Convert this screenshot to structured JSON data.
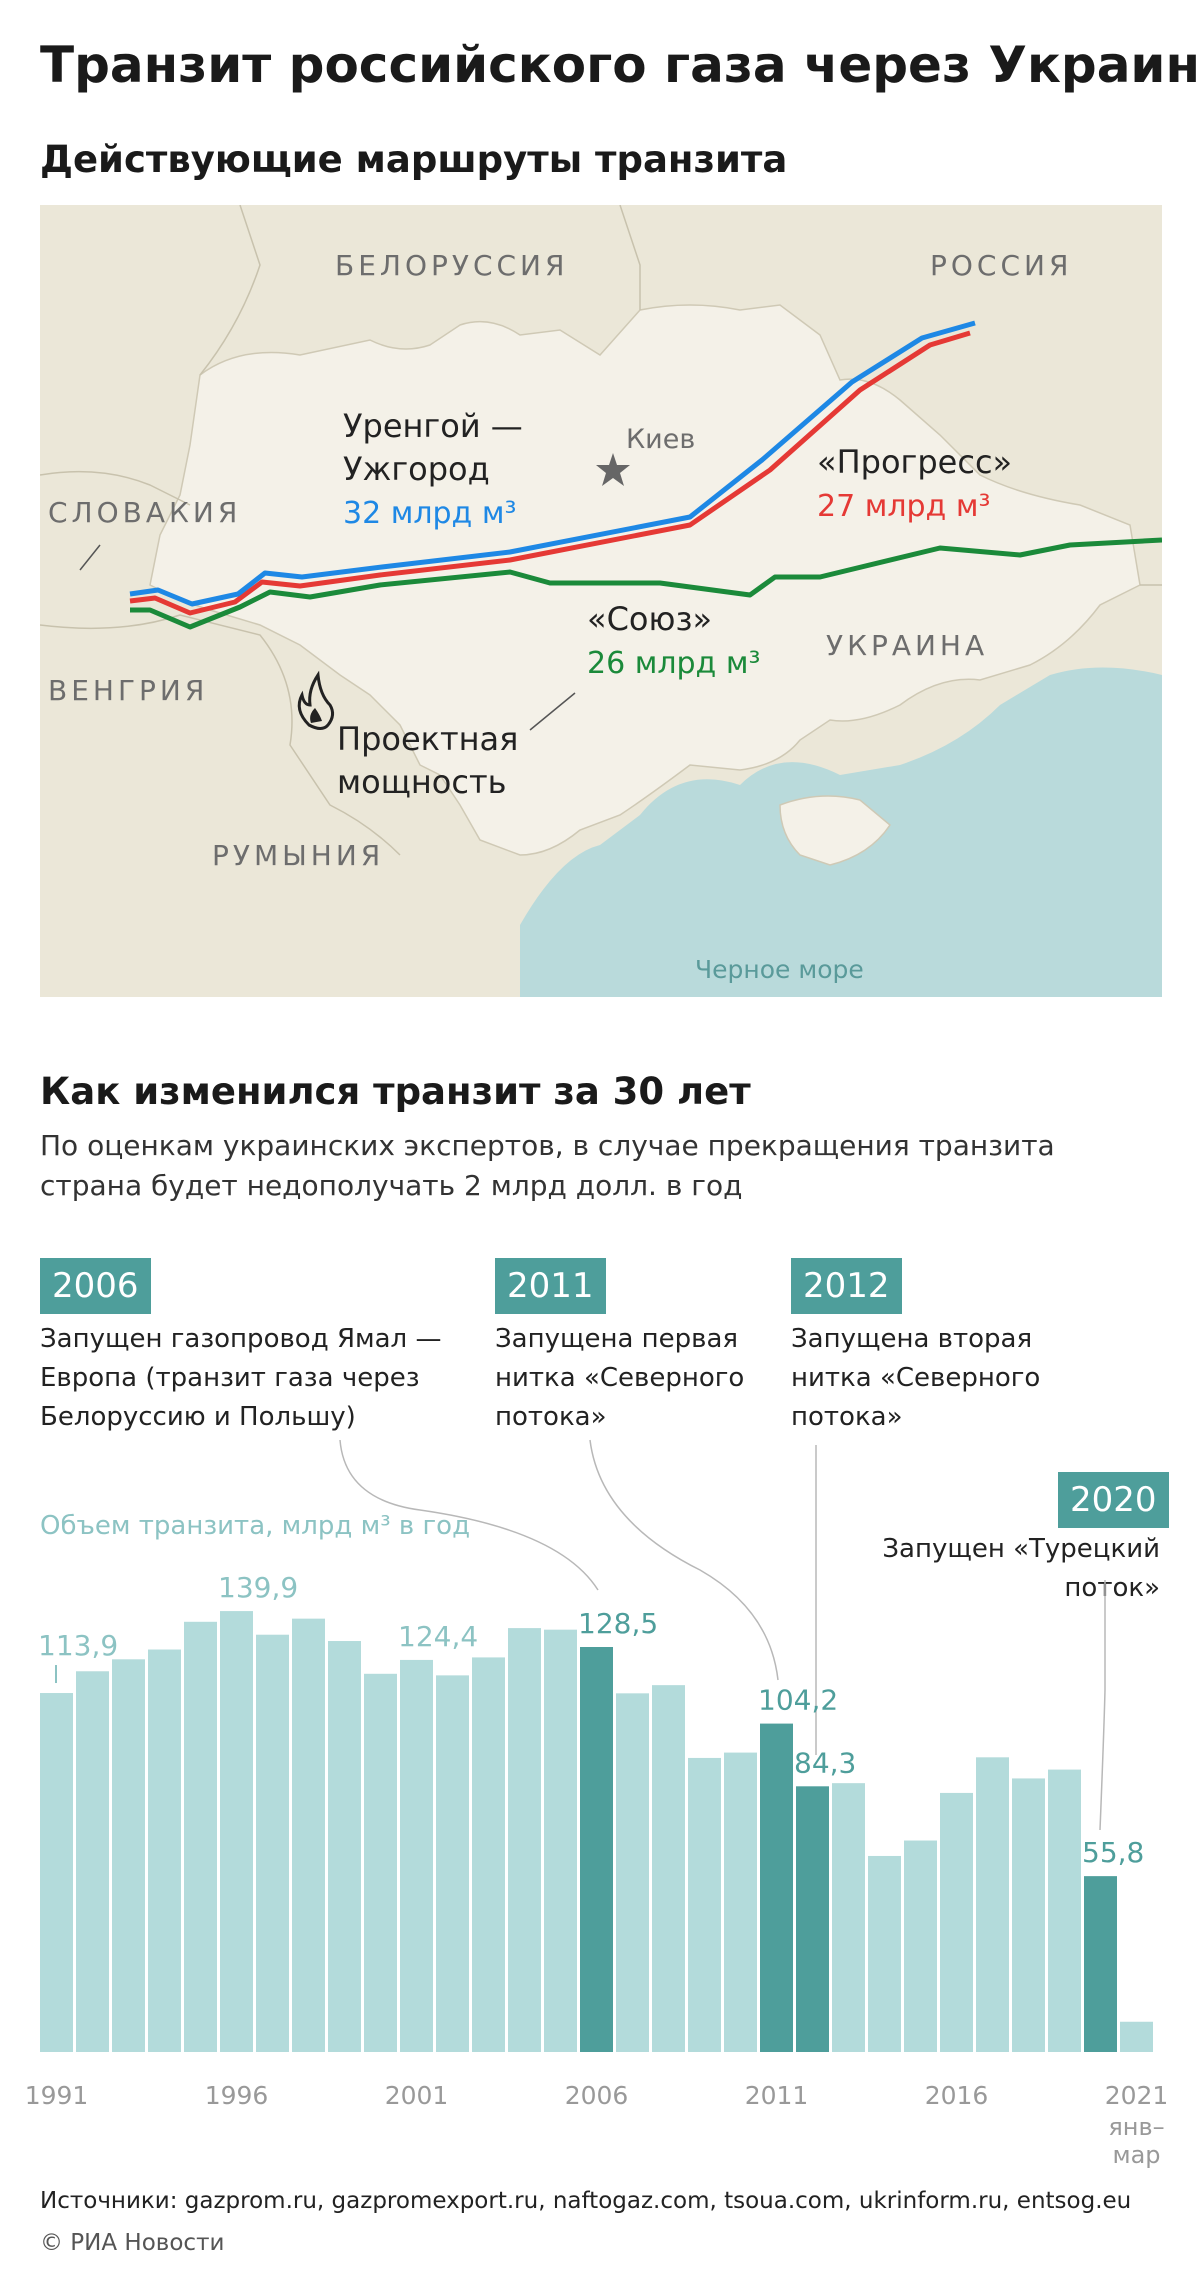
{
  "title": "Транзит российского газа через Украину",
  "map": {
    "heading": "Действующие маршруты транзита",
    "countries": {
      "belarus": "БЕЛОРУССИЯ",
      "russia": "РОССИЯ",
      "slovakia": "СЛОВАКИЯ",
      "hungary": "ВЕНГРИЯ",
      "romania": "РУМЫНИЯ",
      "ukraine": "УКРАИНА"
    },
    "city": "Киев",
    "sea": "Черное море",
    "routes": {
      "urengoy_line1": "Уренгой —",
      "urengoy_line2": "Ужгород",
      "urengoy_value": "32 млрд м³",
      "progress_name": "«Прогресс»",
      "progress_value": "27 млрд м³",
      "soyuz_name": "«Союз»",
      "soyuz_value": "26 млрд м³"
    },
    "legend_line1": "Проектная",
    "legend_line2": "мощность",
    "colors": {
      "urengoy": "#1e88e5",
      "progress": "#e53935",
      "soyuz": "#1b8a3a",
      "land": "#f4f1e8",
      "neighbour": "#ebe7d8",
      "sea": "#b9dadb"
    },
    "icons": {
      "capital": "star-icon",
      "capacity": "flame-icon"
    }
  },
  "chart": {
    "heading": "Как изменился транзит за 30 лет",
    "subtitle": "По оценкам украинских экспертов, в случае прекращения транзита страна будет недополучать 2 млрд долл. в год",
    "events": [
      {
        "year": "2006",
        "text": [
          "Запущен газопровод Ямал —",
          "Европа (транзит газа через",
          "Белоруссию и Польшу)"
        ]
      },
      {
        "year": "2011",
        "text": [
          "Запущена первая",
          "нитка «Северного",
          "потока»"
        ]
      },
      {
        "year": "2012",
        "text": [
          "Запущена вторая",
          "нитка «Северного",
          "потока»"
        ]
      },
      {
        "year": "2020",
        "text": [
          "Запущен «Турецкий",
          "поток»"
        ]
      }
    ],
    "colors": {
      "bar": "#b3dbdb",
      "highlight": "#4e9e9b",
      "axis_text": "#999999",
      "value_label": "#8cc3c3"
    }
  },
  "chart_data": {
    "type": "bar",
    "ylabel": "Объем транзита, млрд м³ в год",
    "x": [
      "1991",
      "1992",
      "1993",
      "1994",
      "1995",
      "1996",
      "1997",
      "1998",
      "1999",
      "2000",
      "2001",
      "2002",
      "2003",
      "2004",
      "2005",
      "2006",
      "2007",
      "2008",
      "2009",
      "2010",
      "2011",
      "2012",
      "2013",
      "2014",
      "2015",
      "2016",
      "2017",
      "2018",
      "2019",
      "2020",
      "2021"
    ],
    "values": [
      113.9,
      120.8,
      124.6,
      127.7,
      136.5,
      139.9,
      132.4,
      137.5,
      130.4,
      120.0,
      124.4,
      119.5,
      125.2,
      134.5,
      134.0,
      128.5,
      113.8,
      116.4,
      93.3,
      95.0,
      104.2,
      84.3,
      85.3,
      62.2,
      67.1,
      82.2,
      93.5,
      86.8,
      89.6,
      55.8,
      9.6
    ],
    "highlight": [
      "2006",
      "2011",
      "2012",
      "2020"
    ],
    "value_labels": [
      {
        "year": "1991",
        "label": "113,9"
      },
      {
        "year": "1996",
        "label": "139,9"
      },
      {
        "year": "2001",
        "label": "124,4"
      },
      {
        "year": "2006",
        "label": "128,5"
      },
      {
        "year": "2011",
        "label": "104,2"
      },
      {
        "year": "2012",
        "label": "84,3"
      },
      {
        "year": "2020",
        "label": "55,8"
      }
    ],
    "x_ticks": [
      "1991",
      "1996",
      "2001",
      "2006",
      "2011",
      "2016",
      "2021"
    ],
    "last_bar_note": [
      "янв–",
      "мар"
    ],
    "ylim": [
      0,
      145
    ]
  },
  "footer": {
    "sources": "Источники: gazprom.ru, gazpromexport.ru, naftogaz.com, tsoua.com, ukrinform.ru, entsog.eu",
    "copyright": "© РИА Новости"
  }
}
